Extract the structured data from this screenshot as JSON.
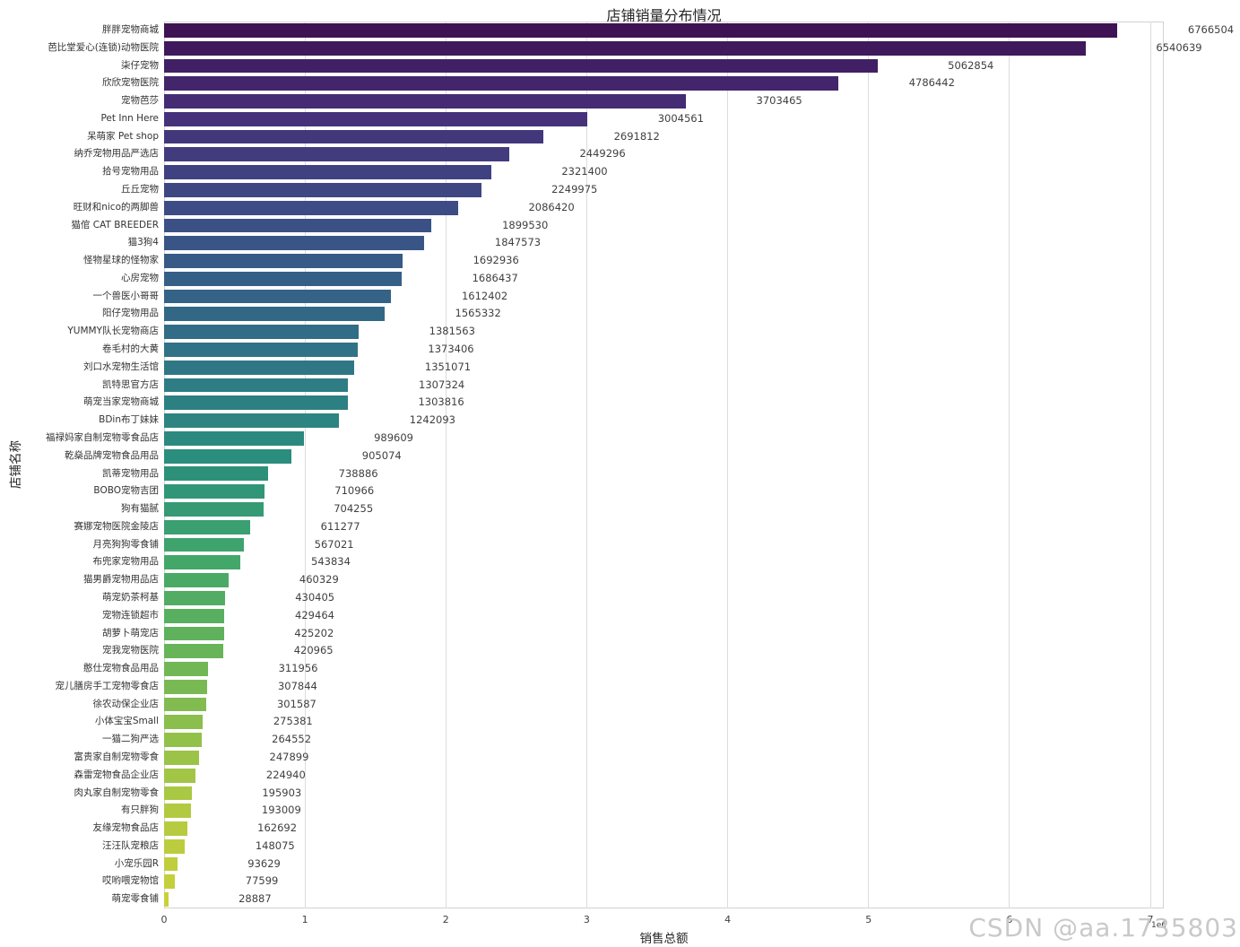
{
  "watermark": "CSDN @aa.1735803",
  "chart_data": {
    "type": "bar",
    "orientation": "horizontal",
    "title": "店铺销量分布情况",
    "xlabel": "销售总额",
    "ylabel": "店铺名称",
    "xlim": [
      0,
      7095000
    ],
    "x_ticks": [
      "0",
      "1",
      "2",
      "3",
      "4",
      "5",
      "6",
      "7"
    ],
    "scale_label": "1e6",
    "grid": "vertical-gridlines-on",
    "legend": "none",
    "value_label_offset": 500000,
    "categories": [
      "胖胖宠物商城",
      "芭比堂爱心(连锁)动物医院",
      "柒仔宠物",
      "欣欣宠物医院",
      "宠物芭莎",
      "Pet Inn Here",
      "呆萌家 Pet shop",
      "纳乔宠物用品严选店",
      "拾号宠物用品",
      "丘丘宠物",
      "旺财和nico的两脚兽",
      "猫倌 CAT BREEDER",
      "猫3狗4",
      "怪物星球的怪物家",
      "心房宠物",
      "一个兽医小哥哥",
      "阳仔宠物用品",
      "YUMMY队长宠物商店",
      "卷毛村的大黄",
      "刘口水宠物生活馆",
      "凯特思官方店",
      "萌宠当家宠物商城",
      "BDin布丁妹妹",
      "福禄妈家自制宠物零食品店",
      "乾燊品牌宠物食品用品",
      "凯蒂宠物用品",
      "BOBO宠物吉团",
      "狗有猫腻",
      "赛娜宠物医院金陵店",
      "月亮狗狗零食铺",
      "布兜家宠物用品",
      "猫男爵宠物用品店",
      "萌宠奶茶柯基",
      "宠物连锁超市",
      "胡萝卜萌宠店",
      "宠我宠物医院",
      "憨仕宠物食品用品",
      "宠儿膳房手工宠物零食店",
      "徐农动保企业店",
      "小体宝宝Small",
      "一猫二狗严选",
      "富贵家自制宠物零食",
      "森雷宠物食品企业店",
      "肉丸家自制宠物零食",
      "有只胖狗",
      "友缘宠物食品店",
      "汪汪队宠粮店",
      "小宠乐园R",
      "哎哟喂宠物馆",
      "萌宠零食铺"
    ],
    "values": [
      6766504,
      6540639,
      5062854,
      4786442,
      3703465,
      3004561,
      2691812,
      2449296,
      2321400,
      2249975,
      2086420,
      1899530,
      1847573,
      1692936,
      1686437,
      1612402,
      1565332,
      1381563,
      1373406,
      1351071,
      1307324,
      1303816,
      1242093,
      989609,
      905074,
      738886,
      710966,
      704255,
      611277,
      567021,
      543834,
      460329,
      430405,
      429464,
      425202,
      420965,
      311956,
      307844,
      301587,
      275381,
      264552,
      247899,
      224940,
      195903,
      193009,
      162692,
      148075,
      93629,
      77599,
      28887
    ],
    "color_scale": [
      "#3f1254",
      "#45317a",
      "#3d4b84",
      "#346287",
      "#2e7a85",
      "#2b8f7c",
      "#40a56c",
      "#62b25b",
      "#8cbf4c",
      "#b2ca41",
      "#c9d13a"
    ]
  }
}
